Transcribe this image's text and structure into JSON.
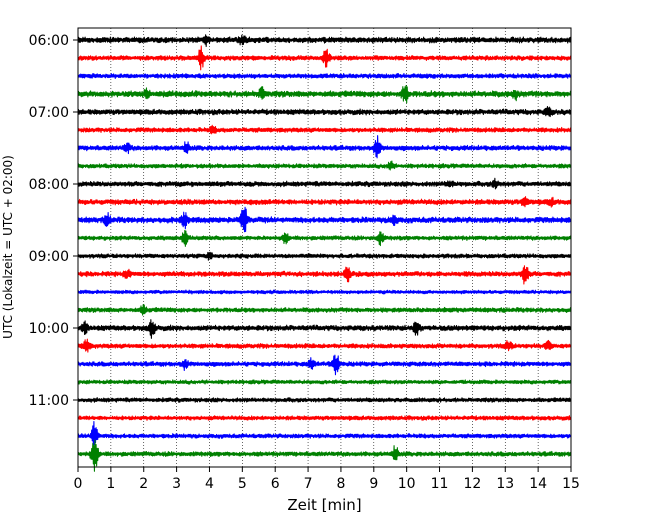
{
  "chart_data": {
    "type": "line",
    "subtype": "helicorder",
    "xlabel": "Zeit  [min]",
    "ylabel": "UTC (Lokalzeit = UTC + 02:00)",
    "xlim": [
      0,
      15
    ],
    "x_ticks": [
      0,
      1,
      2,
      3,
      4,
      5,
      6,
      7,
      8,
      9,
      10,
      11,
      12,
      13,
      14,
      15
    ],
    "x_tick_labels": [
      "0",
      "1",
      "2",
      "3",
      "4",
      "5",
      "6",
      "7",
      "8",
      "9",
      "10",
      "11",
      "12",
      "13",
      "14",
      "15"
    ],
    "y_tick_labels": [
      "06:00",
      "07:00",
      "08:00",
      "09:00",
      "10:00",
      "11:00"
    ],
    "y_tick_traces": [
      0,
      4,
      8,
      12,
      16,
      20
    ],
    "vertical_grid": "dotted",
    "trace_colors": [
      "#000000",
      "#ff0000",
      "#0000ff",
      "#008000"
    ],
    "trace_count": 24,
    "trace_interval_min": 15,
    "traces": [
      {
        "start": "06:00",
        "color": "#000000",
        "noise": 3.2,
        "events": [
          {
            "t": 3.9,
            "amp": 4
          },
          {
            "t": 5.0,
            "amp": 3
          }
        ]
      },
      {
        "start": "06:15",
        "color": "#ff0000",
        "noise": 2.6,
        "events": [
          {
            "t": 3.75,
            "amp": 12
          },
          {
            "t": 7.55,
            "amp": 8
          }
        ]
      },
      {
        "start": "06:30",
        "color": "#0000ff",
        "noise": 2.6,
        "events": []
      },
      {
        "start": "06:45",
        "color": "#008000",
        "noise": 3.4,
        "events": [
          {
            "t": 2.1,
            "amp": 4
          },
          {
            "t": 5.6,
            "amp": 6
          },
          {
            "t": 9.95,
            "amp": 9
          },
          {
            "t": 13.3,
            "amp": 4
          }
        ]
      },
      {
        "start": "07:00",
        "color": "#000000",
        "noise": 3.0,
        "events": [
          {
            "t": 14.3,
            "amp": 4
          }
        ]
      },
      {
        "start": "07:15",
        "color": "#ff0000",
        "noise": 2.6,
        "events": [
          {
            "t": 4.1,
            "amp": 3
          }
        ]
      },
      {
        "start": "07:30",
        "color": "#0000ff",
        "noise": 2.8,
        "events": [
          {
            "t": 1.5,
            "amp": 4
          },
          {
            "t": 3.3,
            "amp": 5
          },
          {
            "t": 9.1,
            "amp": 11
          }
        ]
      },
      {
        "start": "07:45",
        "color": "#008000",
        "noise": 2.4,
        "events": [
          {
            "t": 9.5,
            "amp": 4
          }
        ]
      },
      {
        "start": "08:00",
        "color": "#000000",
        "noise": 2.8,
        "events": [
          {
            "t": 11.3,
            "amp": 3
          },
          {
            "t": 12.7,
            "amp": 4
          }
        ]
      },
      {
        "start": "08:15",
        "color": "#ff0000",
        "noise": 3.0,
        "events": [
          {
            "t": 13.6,
            "amp": 4
          },
          {
            "t": 14.4,
            "amp": 3
          }
        ]
      },
      {
        "start": "08:30",
        "color": "#0000ff",
        "noise": 3.2,
        "events": [
          {
            "t": 0.9,
            "amp": 5
          },
          {
            "t": 3.25,
            "amp": 7
          },
          {
            "t": 5.05,
            "amp": 14
          },
          {
            "t": 9.6,
            "amp": 5
          }
        ]
      },
      {
        "start": "08:45",
        "color": "#008000",
        "noise": 2.4,
        "events": [
          {
            "t": 3.25,
            "amp": 7
          },
          {
            "t": 6.3,
            "amp": 5
          },
          {
            "t": 9.2,
            "amp": 6
          }
        ]
      },
      {
        "start": "09:00",
        "color": "#000000",
        "noise": 2.4,
        "events": [
          {
            "t": 4.0,
            "amp": 3
          }
        ]
      },
      {
        "start": "09:15",
        "color": "#ff0000",
        "noise": 2.8,
        "events": [
          {
            "t": 1.5,
            "amp": 4
          },
          {
            "t": 8.2,
            "amp": 6
          },
          {
            "t": 13.6,
            "amp": 10
          }
        ]
      },
      {
        "start": "09:30",
        "color": "#0000ff",
        "noise": 2.0,
        "events": []
      },
      {
        "start": "09:45",
        "color": "#008000",
        "noise": 2.6,
        "events": [
          {
            "t": 2.0,
            "amp": 4
          }
        ]
      },
      {
        "start": "10:00",
        "color": "#000000",
        "noise": 3.0,
        "events": [
          {
            "t": 0.2,
            "amp": 5
          },
          {
            "t": 2.25,
            "amp": 8
          },
          {
            "t": 10.3,
            "amp": 6
          }
        ]
      },
      {
        "start": "10:15",
        "color": "#ff0000",
        "noise": 2.6,
        "events": [
          {
            "t": 0.25,
            "amp": 7
          },
          {
            "t": 13.1,
            "amp": 5
          },
          {
            "t": 14.3,
            "amp": 4
          }
        ]
      },
      {
        "start": "10:30",
        "color": "#0000ff",
        "noise": 2.6,
        "events": [
          {
            "t": 3.25,
            "amp": 5
          },
          {
            "t": 7.1,
            "amp": 5
          },
          {
            "t": 7.85,
            "amp": 11
          }
        ]
      },
      {
        "start": "10:45",
        "color": "#008000",
        "noise": 2.2,
        "events": []
      },
      {
        "start": "11:00",
        "color": "#000000",
        "noise": 2.4,
        "events": []
      },
      {
        "start": "11:15",
        "color": "#ff0000",
        "noise": 2.4,
        "events": []
      },
      {
        "start": "11:30",
        "color": "#0000ff",
        "noise": 2.4,
        "events": [
          {
            "t": 0.5,
            "amp": 14
          }
        ]
      },
      {
        "start": "11:45",
        "color": "#008000",
        "noise": 2.6,
        "events": [
          {
            "t": 0.5,
            "amp": 18
          },
          {
            "t": 9.65,
            "amp": 7
          }
        ]
      }
    ]
  }
}
